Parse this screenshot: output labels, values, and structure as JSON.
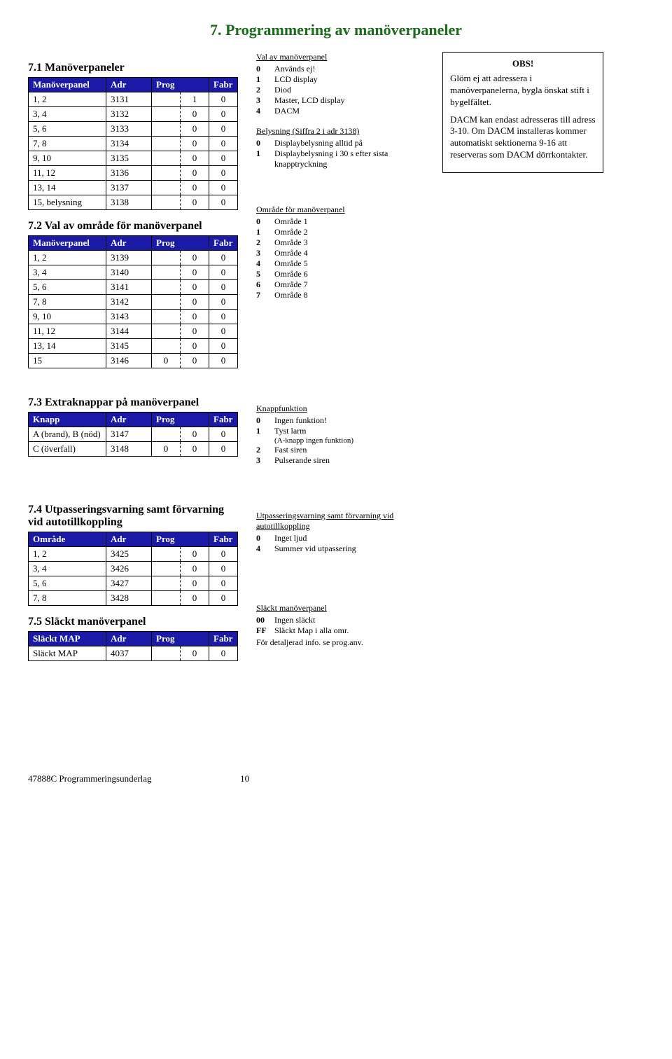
{
  "title_color": "#1a6b1a",
  "header_bg": "#1a1aa6",
  "page_title": "7. Programmering av manöverpaneler",
  "sec71_title": "7.1 Manöverpaneler",
  "t71_headers": [
    "Manöverpanel",
    "Adr",
    "Prog",
    "Fabr"
  ],
  "t71": [
    [
      "1, 2",
      "3131",
      "",
      "1",
      "0"
    ],
    [
      "3, 4",
      "3132",
      "",
      "0",
      "0"
    ],
    [
      "5, 6",
      "3133",
      "",
      "0",
      "0"
    ],
    [
      "7, 8",
      "3134",
      "",
      "0",
      "0"
    ],
    [
      "9, 10",
      "3135",
      "",
      "0",
      "0"
    ],
    [
      "11, 12",
      "3136",
      "",
      "0",
      "0"
    ],
    [
      "13, 14",
      "3137",
      "",
      "0",
      "0"
    ],
    [
      "15, belysning",
      "3138",
      "",
      "0",
      "0"
    ]
  ],
  "sec72_title": "7.2 Val av område för manöverpanel",
  "t72_headers": [
    "Manöverpanel",
    "Adr",
    "Prog",
    "Fabr"
  ],
  "t72": [
    [
      "1, 2",
      "3139",
      "",
      "0",
      "0"
    ],
    [
      "3, 4",
      "3140",
      "",
      "0",
      "0"
    ],
    [
      "5, 6",
      "3141",
      "",
      "0",
      "0"
    ],
    [
      "7, 8",
      "3142",
      "",
      "0",
      "0"
    ],
    [
      "9, 10",
      "3143",
      "",
      "0",
      "0"
    ],
    [
      "11, 12",
      "3144",
      "",
      "0",
      "0"
    ],
    [
      "13, 14",
      "3145",
      "",
      "0",
      "0"
    ],
    [
      "15",
      "3146",
      "0",
      "0",
      "0"
    ]
  ],
  "legend_val_title": "Val av manöverpanel",
  "legend_val": [
    [
      "0",
      "Används ej!"
    ],
    [
      "1",
      "LCD display"
    ],
    [
      "2",
      "Diod"
    ],
    [
      "3",
      "Master, LCD display"
    ],
    [
      "4",
      "DACM"
    ]
  ],
  "legend_bel_title": "Belysning (Siffra 2 i adr 3138)",
  "legend_bel": [
    [
      "0",
      "Displaybelysning alltid på"
    ],
    [
      "1",
      "Displaybelysning i 30 s efter sista knapptryckning"
    ]
  ],
  "legend_omr_title": "Område för manöverpanel",
  "legend_omr": [
    [
      "0",
      "Område 1"
    ],
    [
      "1",
      "Område 2"
    ],
    [
      "2",
      "Område 3"
    ],
    [
      "3",
      "Område 4"
    ],
    [
      "4",
      "Område 5"
    ],
    [
      "5",
      "Område 6"
    ],
    [
      "6",
      "Område 7"
    ],
    [
      "7",
      "Område 8"
    ]
  ],
  "note_obs": "OBS!",
  "note_p1": "Glöm ej att adressera  i manöverpanelerna, bygla önskat stift i bygelfältet.",
  "note_p2": "DACM kan endast adresseras till adress 3-10. Om DACM installeras kommer automatiskt sektionerna 9-16 att reserveras som DACM dörrkontakter.",
  "sec73_title": "7.3 Extraknappar på manöverpanel",
  "t73_headers": [
    "Knapp",
    "Adr",
    "Prog",
    "Fabr"
  ],
  "t73": [
    [
      "A (brand), B (nöd)",
      "3147",
      "",
      "0",
      "0"
    ],
    [
      "C (överfall)",
      "3148",
      "0",
      "0",
      "0"
    ]
  ],
  "legend_knapp_title": "Knappfunktion",
  "legend_knapp": [
    [
      "0",
      "Ingen funktion!"
    ],
    [
      "1",
      "Tyst larm"
    ],
    [
      "",
      "(A-knapp ingen funktion)"
    ],
    [
      "2",
      "Fast siren"
    ],
    [
      "3",
      "Pulserande siren"
    ]
  ],
  "sec74_title": "7.4 Utpasseringsvarning samt förvarning vid autotillkoppling",
  "t74_headers": [
    "Område",
    "Adr",
    "Prog",
    "Fabr"
  ],
  "t74": [
    [
      "1, 2",
      "3425",
      "",
      "0",
      "0"
    ],
    [
      "3, 4",
      "3426",
      "",
      "0",
      "0"
    ],
    [
      "5, 6",
      "3427",
      "",
      "0",
      "0"
    ],
    [
      "7, 8",
      "3428",
      "",
      "0",
      "0"
    ]
  ],
  "legend_utp_title": "Utpasseringsvarning samt förvarning vid autotillkoppling",
  "legend_utp": [
    [
      "0",
      "Inget ljud"
    ],
    [
      "4",
      "Summer vid utpassering"
    ]
  ],
  "sec75_title": "7.5 Släckt manöverpanel",
  "t75_headers": [
    "Släckt MAP",
    "Adr",
    "Prog",
    "Fabr"
  ],
  "t75": [
    [
      "Släckt MAP",
      "4037",
      "",
      "0",
      "0"
    ]
  ],
  "legend_slackt_title": "Släckt manöverpanel",
  "legend_slackt": [
    [
      "00",
      "Ingen släckt"
    ],
    [
      "FF",
      "Släckt Map i alla omr."
    ]
  ],
  "legend_slackt_note": "För detaljerad info. se prog.anv.",
  "footer_left": "47888C Programmeringsunderlag",
  "footer_page": "10"
}
